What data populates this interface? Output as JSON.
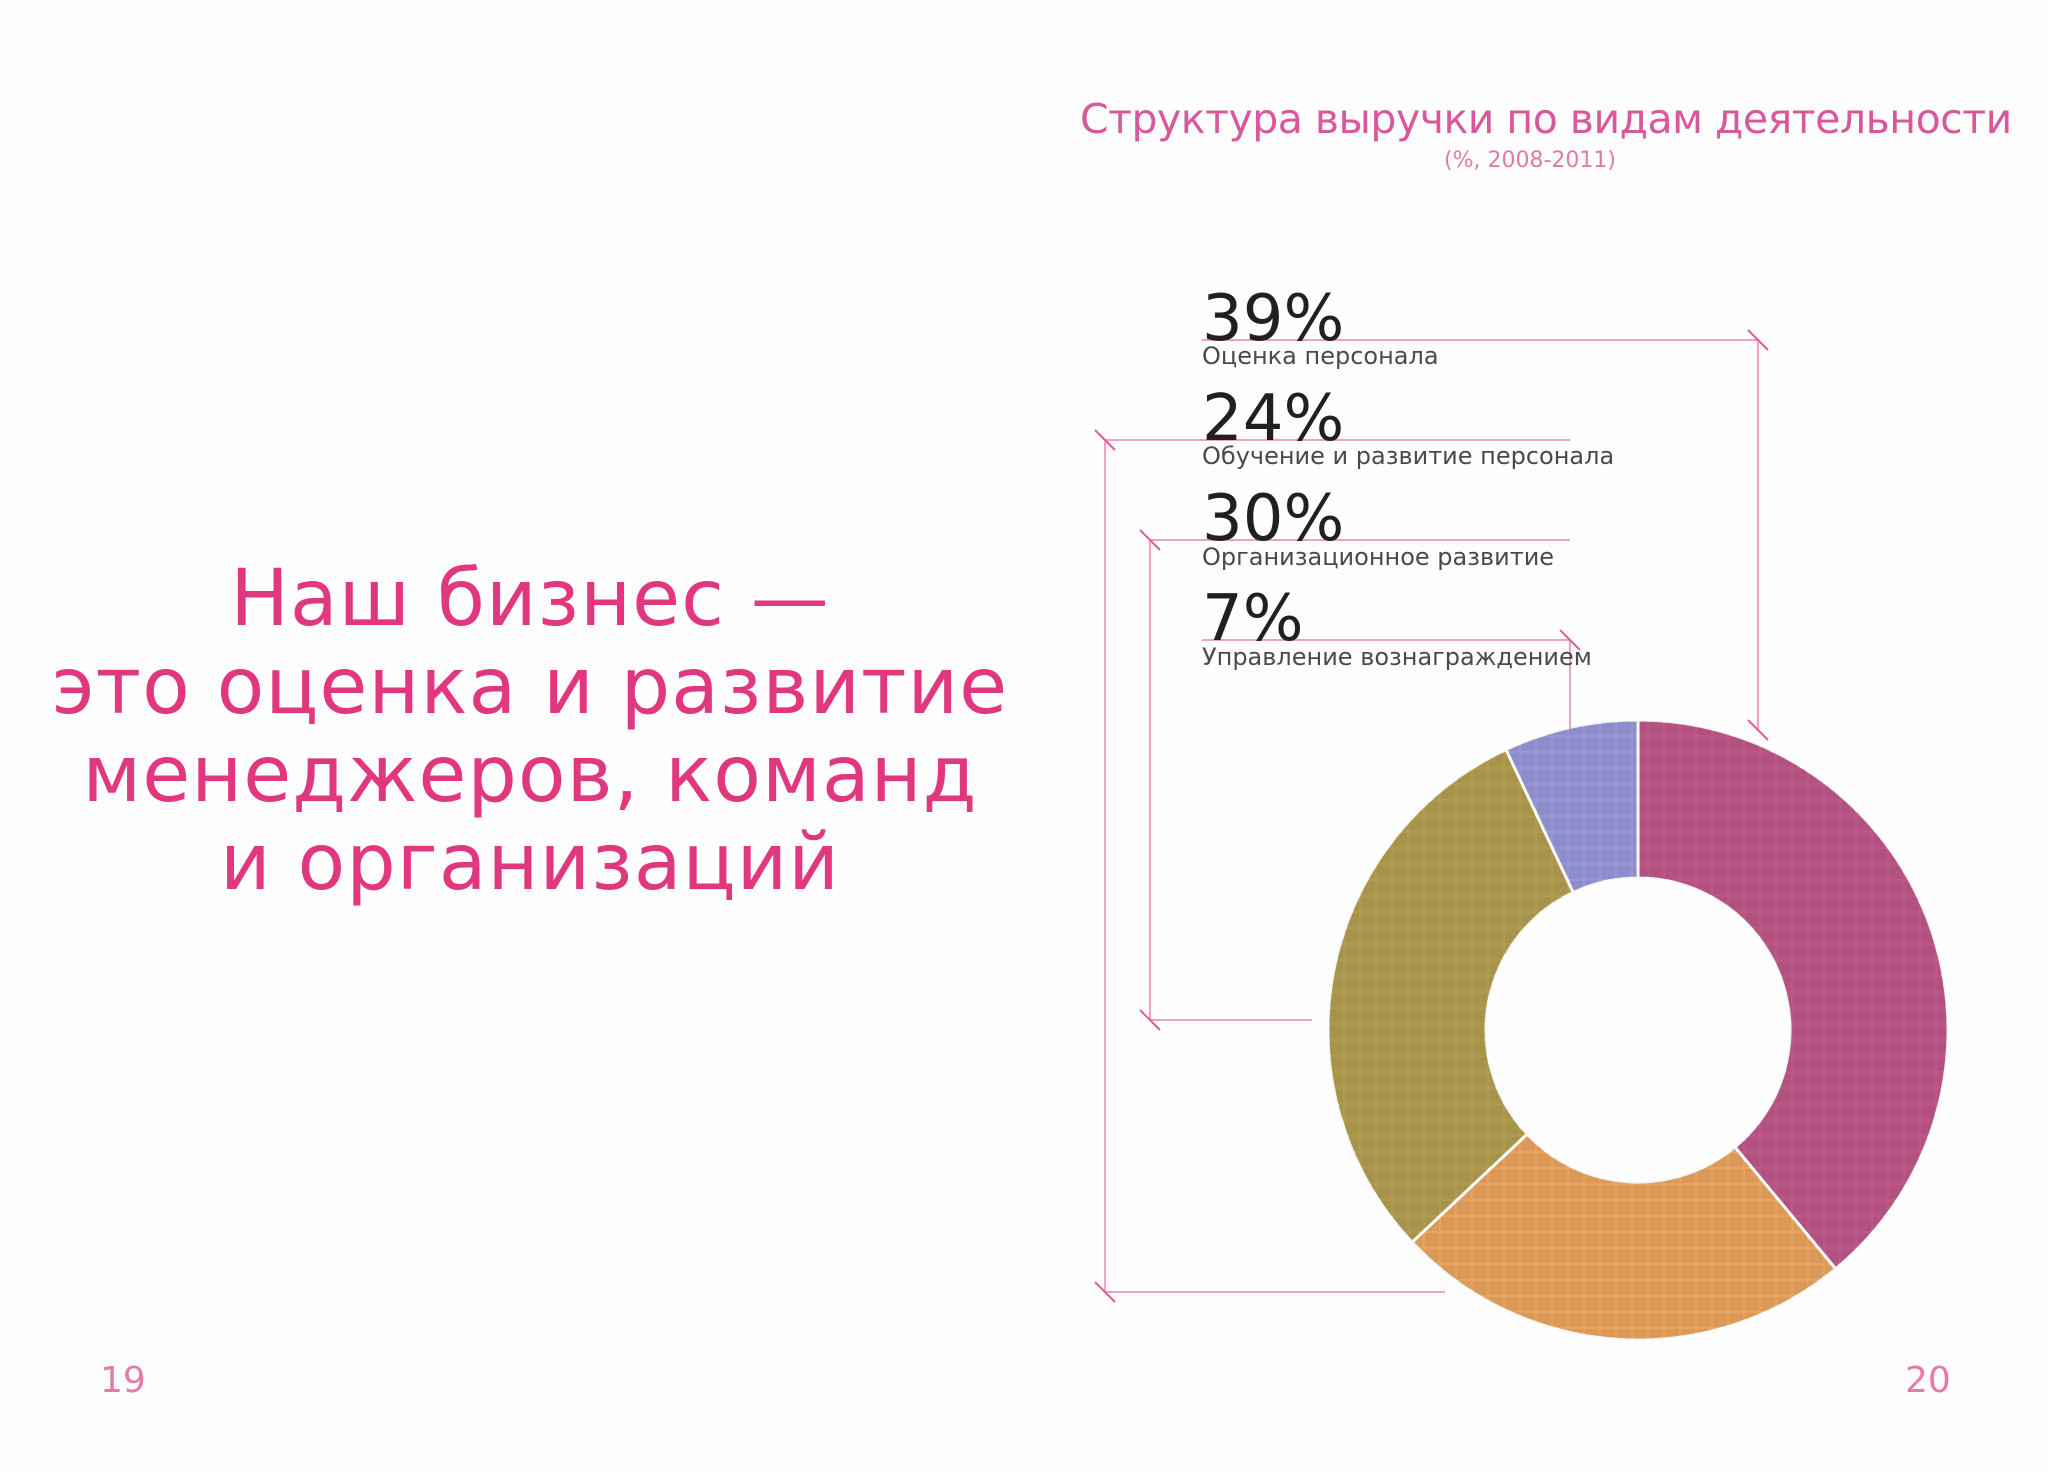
{
  "headline": {
    "lines": [
      "Наш бизнес —",
      "это оценка и развитие",
      "менеджеров, команд",
      "и организаций"
    ]
  },
  "page_numbers": {
    "left": "19",
    "right": "20"
  },
  "chart_data": {
    "type": "pie",
    "title": "Структура выручки по видам деятельности",
    "subtitle": "(%, 2008-2011)",
    "slices": [
      {
        "value": 39,
        "label": "39%",
        "name": "Оценка персонала",
        "color": "#b0336f"
      },
      {
        "value": 24,
        "label": "24%",
        "name": "Обучение и развитие персонала",
        "color": "#e48f3a"
      },
      {
        "value": 30,
        "label": "30%",
        "name": "Организационное развитие",
        "color": "#a08828"
      },
      {
        "value": 7,
        "label": "7%",
        "name": "Управление вознаграждением",
        "color": "#7f7fcf"
      }
    ],
    "accent": "#e05c9a"
  }
}
